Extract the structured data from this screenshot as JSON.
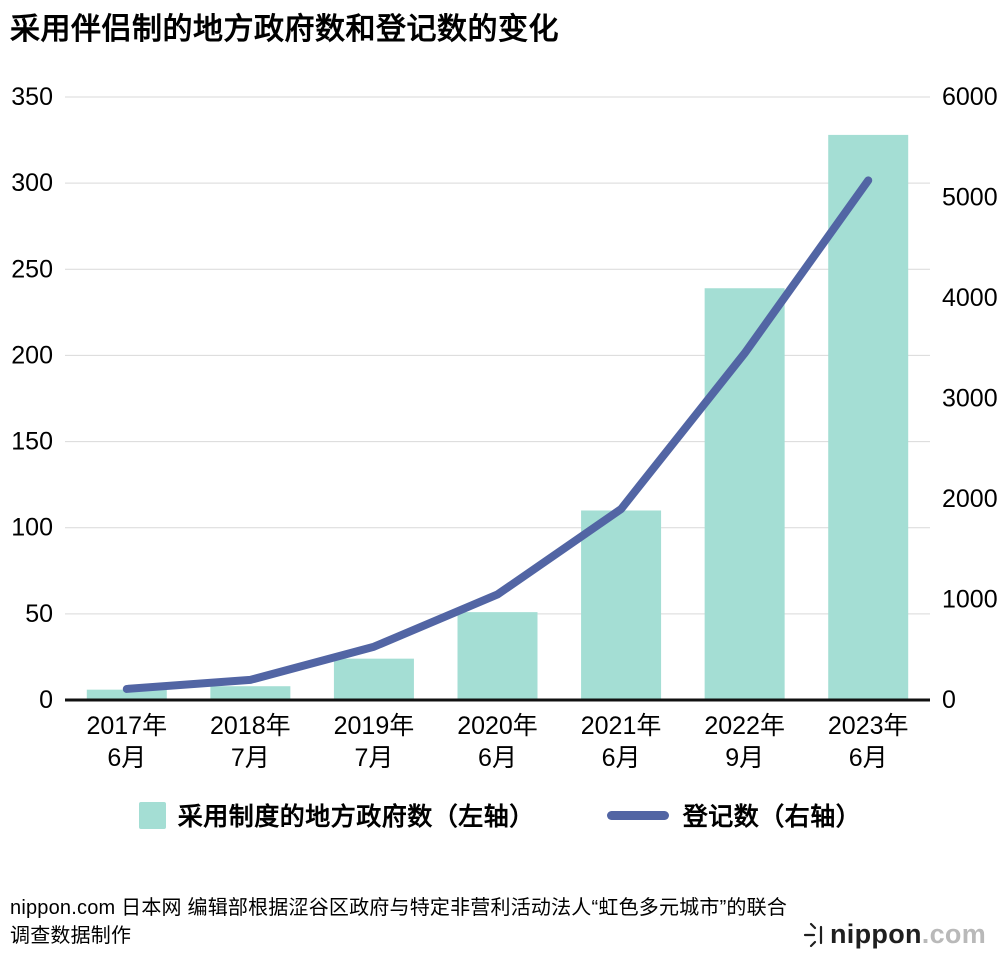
{
  "chart_data": {
    "type": "bar+line",
    "title": "采用伴侣制的地方政府数和登记数的变化",
    "categories": [
      {
        "line1": "2017年",
        "line2": "6月"
      },
      {
        "line1": "2018年",
        "line2": "7月"
      },
      {
        "line1": "2019年",
        "line2": "7月"
      },
      {
        "line1": "2020年",
        "line2": "6月"
      },
      {
        "line1": "2021年",
        "line2": "6月"
      },
      {
        "line1": "2022年",
        "line2": "9月"
      },
      {
        "line1": "2023年",
        "line2": "6月"
      }
    ],
    "series": [
      {
        "name": "采用制度的地方政府数（左轴）",
        "type": "bar",
        "axis": "left",
        "color": "#a4ded4",
        "values": [
          6,
          8,
          24,
          51,
          110,
          239,
          328
        ]
      },
      {
        "name": "登记数（右轴）",
        "type": "line",
        "axis": "right",
        "color": "#5265a4",
        "values": [
          110,
          200,
          530,
          1050,
          1900,
          3450,
          5170
        ]
      }
    ],
    "left_axis": {
      "min": 0,
      "max": 350,
      "step": 50,
      "ticks": [
        "0",
        "50",
        "100",
        "150",
        "200",
        "250",
        "300",
        "350"
      ]
    },
    "right_axis": {
      "min": 0,
      "max": 6000,
      "step": 1000,
      "ticks": [
        "0",
        "1000",
        "2000",
        "3000",
        "4000",
        "5000",
        "6000"
      ]
    },
    "grid": true,
    "grid_color": "#d9d9d9",
    "axis_color": "#111111",
    "legend_position": "bottom"
  },
  "footer": {
    "source": "nippon.com 日本网 编辑部根据涩谷区政府与特定非营利活动法人“虹色多元城市”的联合调查数据制作",
    "logo_primary": "nippon",
    "logo_secondary": ".com"
  }
}
